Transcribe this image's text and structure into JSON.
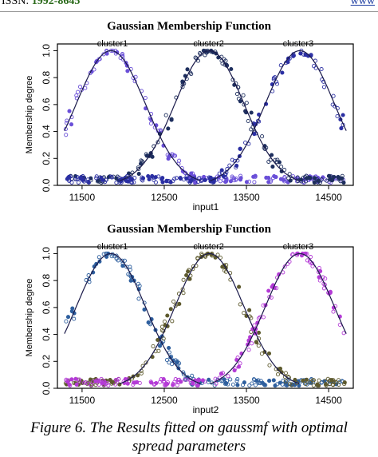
{
  "page": {
    "issn_prefix": "ISSN: ",
    "issn_number": "1992-8645",
    "website": "www",
    "caption_line1": "Figure 6. The Results  fitted on gaussmf with optimal",
    "caption_line2": "spread parameters"
  },
  "colors": {
    "top_cluster1": "#6a4fd8",
    "top_cluster2": "#1e2f5e",
    "top_cluster3": "#2b2fa3",
    "bottom_cluster1": "#2e5f9e",
    "bottom_cluster2": "#5e5a2e",
    "bottom_cluster3": "#b43bd6",
    "curve": "#1a1a4a"
  },
  "chart_data": [
    {
      "type": "scatter",
      "title": "Gaussian Membership Function",
      "xlabel": "input1",
      "ylabel": "Membership degree",
      "xlim": [
        11200,
        14800
      ],
      "ylim": [
        0,
        1.05
      ],
      "xticks": [
        "11500",
        "12500",
        "13500",
        "14500"
      ],
      "yticks": [
        "0.0",
        "0.2",
        "0.4",
        "0.6",
        "0.8",
        "1.0"
      ],
      "grid": false,
      "annotations": [
        "cluster1",
        "cluster2",
        "cluster3"
      ],
      "series": [
        {
          "name": "cluster1",
          "center": 11850,
          "sigma": 420,
          "label_x": 11870,
          "label_y": 1.02
        },
        {
          "name": "cluster2",
          "center": 13050,
          "sigma": 420,
          "label_x": 13040,
          "label_y": 1.02
        },
        {
          "name": "cluster3",
          "center": 14150,
          "sigma": 420,
          "label_x": 14130,
          "label_y": 1.02
        }
      ]
    },
    {
      "type": "scatter",
      "title": "Gaussian Membership Function",
      "xlabel": "input2",
      "ylabel": "Membership degree",
      "xlim": [
        11200,
        14800
      ],
      "ylim": [
        0,
        1.05
      ],
      "xticks": [
        "11500",
        "12500",
        "13500",
        "14500"
      ],
      "yticks": [
        "0.0",
        "0.2",
        "0.4",
        "0.6",
        "0.8",
        "1.0"
      ],
      "grid": false,
      "annotations": [
        "cluster1",
        "cluster2",
        "cluster3"
      ],
      "series": [
        {
          "name": "cluster1",
          "center": 11850,
          "sigma": 420,
          "label_x": 11870,
          "label_y": 1.02
        },
        {
          "name": "cluster2",
          "center": 13050,
          "sigma": 420,
          "label_x": 13040,
          "label_y": 1.02
        },
        {
          "name": "cluster3",
          "center": 14150,
          "sigma": 420,
          "label_x": 14130,
          "label_y": 1.02
        }
      ]
    }
  ]
}
